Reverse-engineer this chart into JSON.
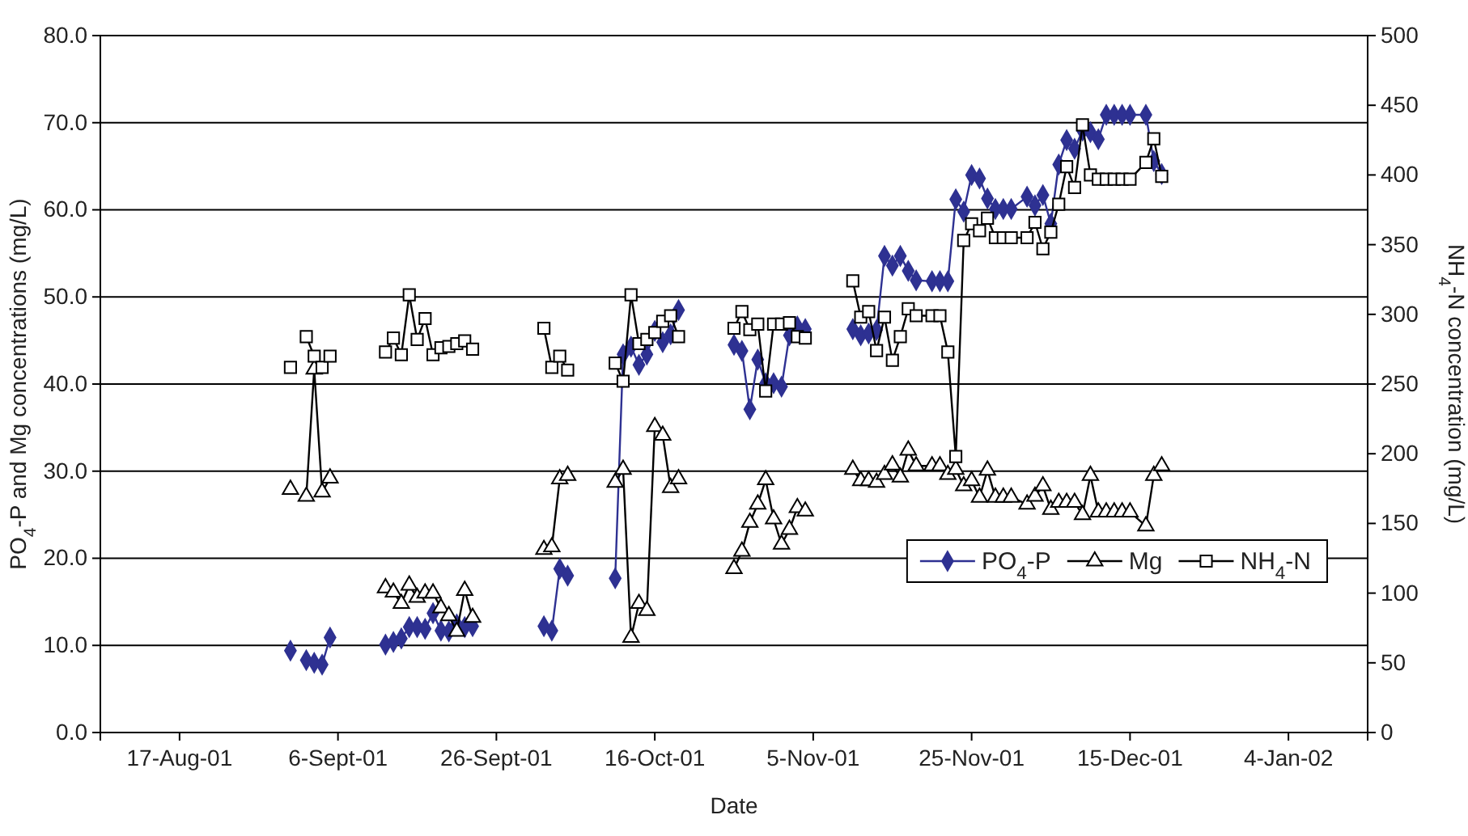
{
  "chart_data": {
    "type": "line",
    "xlabel": "Date",
    "ylabel": "PO$_{4}$-P and Mg concentrations (mg/L)",
    "y2label": "NH$_{4}$-N concentration (mg/L)",
    "x": [
      "2001-08-31",
      "2001-09-01",
      "2001-09-02",
      "2001-09-03",
      "2001-09-04",
      "2001-09-05",
      "2001-09-08",
      "2001-09-12",
      "2001-09-13",
      "2001-09-14",
      "2001-09-15",
      "2001-09-16",
      "2001-09-17",
      "2001-09-18",
      "2001-09-19",
      "2001-09-20",
      "2001-09-21",
      "2001-09-22",
      "2001-09-23",
      "2001-09-28",
      "2001-10-02",
      "2001-10-03",
      "2001-10-04",
      "2001-10-05",
      "2001-10-08",
      "2001-10-11",
      "2001-10-12",
      "2001-10-13",
      "2001-10-14",
      "2001-10-15",
      "2001-10-16",
      "2001-10-17",
      "2001-10-18",
      "2001-10-19",
      "2001-10-23",
      "2001-10-26",
      "2001-10-27",
      "2001-10-28",
      "2001-10-29",
      "2001-10-30",
      "2001-10-31",
      "2001-11-01",
      "2001-11-02",
      "2001-11-03",
      "2001-11-04",
      "2001-11-07",
      "2001-11-10",
      "2001-11-11",
      "2001-11-12",
      "2001-11-13",
      "2001-11-14",
      "2001-11-15",
      "2001-11-16",
      "2001-11-17",
      "2001-11-18",
      "2001-11-20",
      "2001-11-21",
      "2001-11-22",
      "2001-11-23",
      "2001-11-24",
      "2001-11-25",
      "2001-11-26",
      "2001-11-27",
      "2001-11-28",
      "2001-11-29",
      "2001-11-30",
      "2001-12-02",
      "2001-12-03",
      "2001-12-04",
      "2001-12-05",
      "2001-12-06",
      "2001-12-07",
      "2001-12-08",
      "2001-12-09",
      "2001-12-10",
      "2001-12-11",
      "2001-12-12",
      "2001-12-13",
      "2001-12-14",
      "2001-12-15",
      "2001-12-17",
      "2001-12-18",
      "2001-12-19"
    ],
    "series": [
      {
        "name": "PO$_{4}$-P",
        "color": "#2e3192",
        "marker": "diamond",
        "values": [
          9.4,
          null,
          8.3,
          8.0,
          7.8,
          10.9,
          null,
          10.1,
          10.4,
          10.8,
          12.1,
          12.1,
          11.9,
          13.7,
          11.7,
          11.6,
          12.4,
          12.1,
          12.2,
          null,
          12.2,
          11.7,
          18.8,
          18.0,
          null,
          17.7,
          43.4,
          44.3,
          42.2,
          43.4,
          46.1,
          44.8,
          45.7,
          48.5,
          null,
          44.5,
          43.8,
          37.1,
          42.8,
          40.1,
          40.1,
          39.7,
          45.6,
          46.6,
          46.3,
          null,
          46.3,
          45.6,
          45.8,
          46.2,
          54.7,
          53.6,
          54.7,
          53.0,
          51.9,
          51.8,
          51.8,
          51.8,
          61.2,
          59.8,
          64.0,
          63.6,
          61.3,
          60.1,
          60.1,
          60.1,
          61.5,
          60.5,
          61.7,
          58.4,
          65.2,
          68.0,
          67.0,
          69.1,
          68.9,
          68.1,
          70.9,
          70.9,
          70.9,
          70.9,
          70.9,
          65.6,
          64.1
        ]
      },
      {
        "name": "Mg",
        "color": "#000000",
        "marker": "triangle",
        "values": [
          27.9,
          null,
          27.1,
          41.7,
          27.6,
          29.2,
          null,
          16.6,
          16.1,
          14.8,
          16.9,
          15.5,
          16.0,
          16.0,
          14.3,
          13.4,
          11.6,
          16.3,
          13.2,
          null,
          21.0,
          21.3,
          29.1,
          29.5,
          null,
          28.7,
          30.2,
          10.9,
          14.8,
          14.0,
          35.1,
          34.1,
          28.1,
          29.1,
          null,
          18.8,
          20.8,
          24.1,
          26.2,
          29.0,
          24.5,
          21.6,
          23.3,
          25.8,
          25.4,
          null,
          30.2,
          28.9,
          28.9,
          28.7,
          29.6,
          30.7,
          29.3,
          32.4,
          30.6,
          30.6,
          30.6,
          29.6,
          30.2,
          28.3,
          28.9,
          27.0,
          30.1,
          27.0,
          27.0,
          27.0,
          26.2,
          27.1,
          28.3,
          25.6,
          26.4,
          26.4,
          26.4,
          25.0,
          29.5,
          25.3,
          25.3,
          25.3,
          25.3,
          25.3,
          23.7,
          29.5,
          30.6
        ]
      },
      {
        "name": "NH$_{4}$-N",
        "color": "#000000",
        "marker": "square",
        "axis": "y2",
        "values": [
          262,
          null,
          284,
          270,
          262,
          270,
          null,
          273,
          283,
          271,
          314,
          282,
          297,
          271,
          276,
          277,
          279,
          281,
          275,
          null,
          290,
          262,
          270,
          260,
          null,
          265,
          252,
          314,
          279,
          282,
          287,
          295,
          299,
          284,
          null,
          290,
          302,
          289,
          293,
          245,
          293,
          293,
          294,
          284,
          283,
          null,
          324,
          298,
          302,
          274,
          298,
          267,
          284,
          304,
          299,
          299,
          299,
          273,
          198,
          353,
          365,
          360,
          369,
          355,
          355,
          355,
          355,
          366,
          347,
          359,
          379,
          406,
          391,
          436,
          400,
          397,
          397,
          397,
          397,
          397,
          409,
          426,
          399
        ]
      }
    ],
    "xlim": [
      "2001-08-07",
      "2002-01-14"
    ],
    "xticks": [
      {
        "value": "2001-08-17",
        "label": "17-Aug-01"
      },
      {
        "value": "2001-09-06",
        "label": "6-Sept-01"
      },
      {
        "value": "2001-09-26",
        "label": "26-Sept-01"
      },
      {
        "value": "2001-10-16",
        "label": "16-Oct-01"
      },
      {
        "value": "2001-11-05",
        "label": "5-Nov-01"
      },
      {
        "value": "2001-11-25",
        "label": "25-Nov-01"
      },
      {
        "value": "2001-12-15",
        "label": "15-Dec-01"
      },
      {
        "value": "2002-01-04",
        "label": "4-Jan-02"
      }
    ],
    "ylim": [
      0,
      80
    ],
    "yticks": [
      {
        "value": 0,
        "label": "0.0"
      },
      {
        "value": 10,
        "label": "10.0"
      },
      {
        "value": 20,
        "label": "20.0"
      },
      {
        "value": 30,
        "label": "30.0"
      },
      {
        "value": 40,
        "label": "40.0"
      },
      {
        "value": 50,
        "label": "50.0"
      },
      {
        "value": 60,
        "label": "60.0"
      },
      {
        "value": 70,
        "label": "70.0"
      },
      {
        "value": 80,
        "label": "80.0"
      }
    ],
    "y2lim": [
      0,
      500
    ],
    "y2ticks": [
      0,
      50,
      100,
      150,
      200,
      250,
      300,
      350,
      400,
      450,
      500
    ],
    "grid": "y",
    "legend": "bottom right",
    "line_style": "solid"
  }
}
